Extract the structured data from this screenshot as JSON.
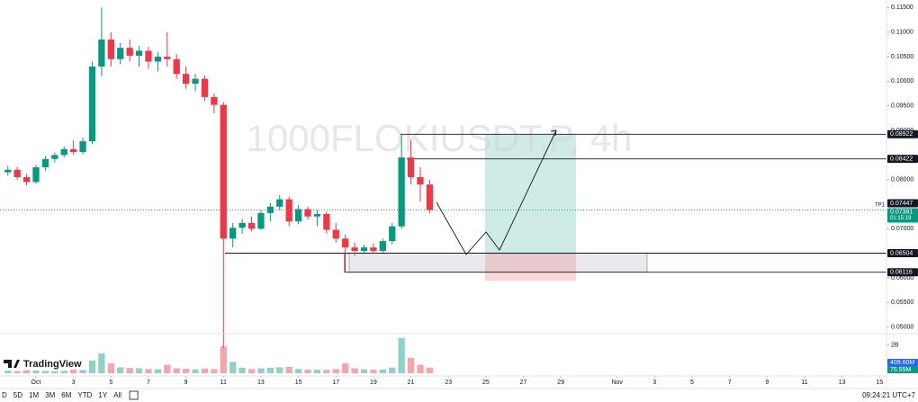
{
  "chart_data": {
    "type": "candlestick",
    "title": "1000FLOKIUSDT.P, 4h",
    "up_color": "#089981",
    "down_color": "#f23645",
    "x": [
      -0.5,
      0,
      0.5,
      1,
      1.5,
      2,
      2.5,
      3,
      3.5,
      4,
      4.5,
      5,
      5.5,
      6,
      6.5,
      7,
      7.5,
      8,
      8.5,
      9,
      9.5,
      10,
      10.5,
      11,
      11.5,
      12,
      12.5,
      13,
      13.5,
      14,
      14.5,
      15,
      15.5,
      16,
      16.5,
      17,
      17.5,
      18,
      18.5,
      19,
      19.5,
      20,
      20.5,
      21,
      21.5,
      22
    ],
    "open": [
      0.0815,
      0.082,
      0.0805,
      0.0795,
      0.0825,
      0.0842,
      0.085,
      0.0862,
      0.0856,
      0.0878,
      0.103,
      0.1085,
      0.1045,
      0.1068,
      0.1052,
      0.1062,
      0.104,
      0.105,
      0.1045,
      0.1015,
      0.0995,
      0.1005,
      0.0968,
      0.0952,
      0.068,
      0.0702,
      0.0712,
      0.07,
      0.0732,
      0.0745,
      0.076,
      0.0715,
      0.074,
      0.0725,
      0.073,
      0.0698,
      0.068,
      0.0662,
      0.0655,
      0.0662,
      0.0655,
      0.0675,
      0.0705,
      0.0845,
      0.0805,
      0.079
    ],
    "high": [
      0.0828,
      0.0826,
      0.0812,
      0.083,
      0.0848,
      0.0855,
      0.0868,
      0.088,
      0.0885,
      0.104,
      0.115,
      0.11,
      0.1078,
      0.1085,
      0.1072,
      0.107,
      0.106,
      0.11,
      0.1055,
      0.103,
      0.1015,
      0.1012,
      0.0975,
      0.0958,
      0.0712,
      0.072,
      0.0725,
      0.0738,
      0.0752,
      0.0768,
      0.0765,
      0.0748,
      0.0745,
      0.0738,
      0.0735,
      0.0712,
      0.0688,
      0.0672,
      0.0668,
      0.067,
      0.068,
      0.0712,
      0.0892,
      0.088,
      0.0825,
      0.08
    ],
    "low": [
      0.0808,
      0.08,
      0.0788,
      0.0792,
      0.0818,
      0.0835,
      0.0845,
      0.085,
      0.0852,
      0.0872,
      0.101,
      0.103,
      0.1035,
      0.104,
      0.103,
      0.1025,
      0.102,
      0.103,
      0.1005,
      0.0985,
      0.098,
      0.096,
      0.0935,
      0.0457,
      0.0662,
      0.069,
      0.0695,
      0.0698,
      0.0715,
      0.0738,
      0.0705,
      0.071,
      0.0718,
      0.0705,
      0.069,
      0.0672,
      0.0612,
      0.0645,
      0.0648,
      0.065,
      0.0652,
      0.0668,
      0.07,
      0.079,
      0.0755,
      0.0732
    ],
    "close": [
      0.082,
      0.0805,
      0.0795,
      0.0825,
      0.0842,
      0.085,
      0.0862,
      0.0856,
      0.0878,
      0.103,
      0.1085,
      0.1045,
      0.1068,
      0.1052,
      0.1062,
      0.104,
      0.105,
      0.1045,
      0.1015,
      0.0995,
      0.1005,
      0.0968,
      0.0952,
      0.068,
      0.0702,
      0.0712,
      0.07,
      0.0732,
      0.0745,
      0.076,
      0.0715,
      0.074,
      0.0725,
      0.073,
      0.0698,
      0.068,
      0.0662,
      0.0655,
      0.0662,
      0.0655,
      0.0675,
      0.0705,
      0.0845,
      0.0805,
      0.079,
      0.07381
    ],
    "volume": [
      180000000,
      150000000,
      220000000,
      200000000,
      160000000,
      140000000,
      170000000,
      260000000,
      230000000,
      900000000,
      1400000000,
      700000000,
      420000000,
      380000000,
      350000000,
      300000000,
      280000000,
      600000000,
      350000000,
      320000000,
      280000000,
      330000000,
      300000000,
      1900000000,
      800000000,
      400000000,
      300000000,
      350000000,
      380000000,
      420000000,
      450000000,
      300000000,
      260000000,
      250000000,
      240000000,
      300000000,
      700000000,
      350000000,
      280000000,
      250000000,
      260000000,
      400000000,
      2500000000,
      1100000000,
      600000000,
      400000000
    ],
    "xlim": [
      -0.92,
      46.37
    ],
    "xticks": [
      {
        "value": 1,
        "label": "Oct"
      },
      3,
      5,
      7,
      9,
      11,
      13,
      15,
      17,
      19,
      21,
      23,
      25,
      27,
      29,
      {
        "value": 32,
        "label": "Nov"
      },
      {
        "value": 34,
        "label": "3"
      },
      {
        "value": 36,
        "label": "5"
      },
      {
        "value": 38,
        "label": "7"
      },
      {
        "value": 40,
        "label": "9"
      },
      {
        "value": 42,
        "label": "11"
      },
      {
        "value": 44,
        "label": "13"
      },
      {
        "value": 46,
        "label": "15"
      }
    ],
    "ylim": [
      0.04867,
      0.11653
    ],
    "yticks": [
      {
        "value": 0.115,
        "label": "0.11500"
      },
      {
        "value": 0.11,
        "label": "0.11000"
      },
      {
        "value": 0.105,
        "label": "0.10500"
      },
      {
        "value": 0.1,
        "label": "0.10000"
      },
      {
        "value": 0.095,
        "label": "0.09500"
      },
      {
        "value": 0.09,
        "label": "0.09000"
      },
      {
        "value": 0.08,
        "label": "0.08000"
      },
      {
        "value": 0.075,
        "label": "0.07500"
      },
      {
        "value": 0.07,
        "label": "0.07000"
      },
      {
        "value": 0.06,
        "label": "0.06000"
      },
      {
        "value": 0.055,
        "label": "0.05500"
      },
      {
        "value": 0.05,
        "label": "0.05000"
      }
    ],
    "volume_lim": [
      0,
      2750000000
    ],
    "volume_ticks": [
      {
        "value": 2000000000,
        "label": "2B"
      }
    ],
    "volume_labels": [
      {
        "label": "409.60M",
        "color": "#2962ff"
      },
      {
        "label": "75.55M",
        "color": "#089981"
      }
    ],
    "levels": [
      {
        "value": 0.08922,
        "label": "0.08922"
      },
      {
        "value": 0.08422,
        "label": "0.08422"
      },
      {
        "value": 0.06504,
        "label": "0.06504"
      },
      {
        "value": 0.06116,
        "label": "0.06116"
      }
    ],
    "tp_level": {
      "value": 0.07447,
      "label": "0.07447",
      "name": "TP1"
    },
    "current_price": {
      "value": 0.07381,
      "label": "0.07381",
      "countdown": "01:15:19"
    },
    "position": {
      "target": 0.08922,
      "entry": 0.06504,
      "stop": 0.0594
    }
  },
  "logo": "TradingView",
  "ranges": [
    "D",
    "5D",
    "1M",
    "3M",
    "6M",
    "YTD",
    "1Y",
    "All"
  ],
  "clock": "09:24:21 UTC+7"
}
